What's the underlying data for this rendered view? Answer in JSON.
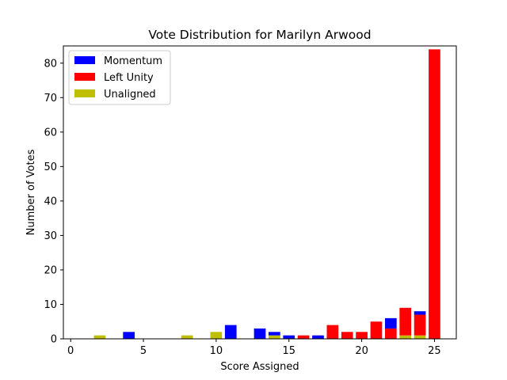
{
  "chart_data": {
    "type": "bar",
    "stacked": true,
    "title": "Vote Distribution for Marilyn Arwood",
    "xlabel": "Score Assigned",
    "ylabel": "Number of Votes",
    "xlim": [
      -0.5,
      26.5
    ],
    "ylim": [
      0,
      85
    ],
    "xticks": [
      0,
      5,
      10,
      15,
      20,
      25
    ],
    "yticks": [
      0,
      10,
      20,
      30,
      40,
      50,
      60,
      70,
      80
    ],
    "grid": false,
    "legend_position": "upper-left",
    "series": [
      {
        "name": "Unaligned",
        "color": "#bfbf00",
        "points": [
          {
            "x": 2,
            "y": 1
          },
          {
            "x": 8,
            "y": 1
          },
          {
            "x": 10,
            "y": 2
          },
          {
            "x": 14,
            "y": 1
          },
          {
            "x": 23,
            "y": 1
          },
          {
            "x": 24,
            "y": 1
          }
        ]
      },
      {
        "name": "Left Unity",
        "color": "#ff0000",
        "points": [
          {
            "x": 16,
            "y": 1
          },
          {
            "x": 18,
            "y": 4
          },
          {
            "x": 19,
            "y": 2
          },
          {
            "x": 20,
            "y": 2
          },
          {
            "x": 21,
            "y": 5
          },
          {
            "x": 22,
            "y": 3
          },
          {
            "x": 23,
            "y": 8
          },
          {
            "x": 24,
            "y": 6
          },
          {
            "x": 25,
            "y": 84
          }
        ]
      },
      {
        "name": "Momentum",
        "color": "#0000ff",
        "points": [
          {
            "x": 4,
            "y": 2
          },
          {
            "x": 11,
            "y": 4
          },
          {
            "x": 13,
            "y": 3
          },
          {
            "x": 14,
            "y": 1
          },
          {
            "x": 15,
            "y": 1
          },
          {
            "x": 17,
            "y": 1
          },
          {
            "x": 22,
            "y": 3
          },
          {
            "x": 24,
            "y": 1
          }
        ]
      }
    ],
    "legend": [
      {
        "label": "Momentum",
        "color": "#0000ff"
      },
      {
        "label": "Left Unity",
        "color": "#ff0000"
      },
      {
        "label": "Unaligned",
        "color": "#bfbf00"
      }
    ]
  }
}
